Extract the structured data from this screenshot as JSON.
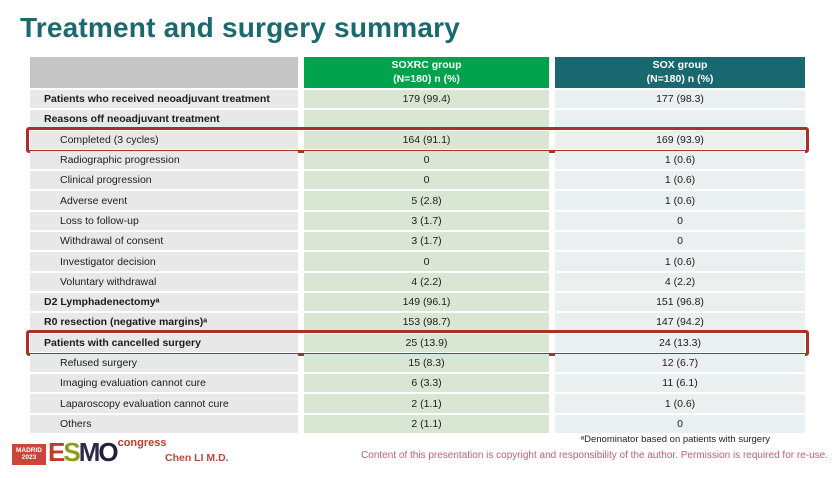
{
  "slide": {
    "title": "Treatment and surgery summary"
  },
  "table": {
    "columns": [
      {
        "line1": "SOXRC group",
        "line2": "(N=180)  n (%)"
      },
      {
        "line1": "SOX group",
        "line2": "(N=180)  n (%)"
      }
    ],
    "rows": [
      {
        "label": "Patients who received neoadjuvant treatment",
        "soxrc": "179 (99.4)",
        "sox": "177 (98.3)",
        "bold": true,
        "indent": false,
        "highlight": false
      },
      {
        "label": "Reasons off neoadjuvant treatment",
        "soxrc": "",
        "sox": "",
        "bold": true,
        "indent": false,
        "highlight": false
      },
      {
        "label": "Completed (3 cycles)",
        "soxrc": "164 (91.1)",
        "sox": "169 (93.9)",
        "bold": false,
        "indent": true,
        "highlight": true
      },
      {
        "label": "Radiographic progression",
        "soxrc": "0",
        "sox": "1 (0.6)",
        "bold": false,
        "indent": true,
        "highlight": false
      },
      {
        "label": "Clinical progression",
        "soxrc": "0",
        "sox": "1 (0.6)",
        "bold": false,
        "indent": true,
        "highlight": false
      },
      {
        "label": "Adverse event",
        "soxrc": "5 (2.8)",
        "sox": "1 (0.6)",
        "bold": false,
        "indent": true,
        "highlight": false
      },
      {
        "label": "Loss to follow-up",
        "soxrc": "3 (1.7)",
        "sox": "0",
        "bold": false,
        "indent": true,
        "highlight": false
      },
      {
        "label": "Withdrawal of consent",
        "soxrc": "3 (1.7)",
        "sox": "0",
        "bold": false,
        "indent": true,
        "highlight": false
      },
      {
        "label": "Investigator decision",
        "soxrc": "0",
        "sox": "1 (0.6)",
        "bold": false,
        "indent": true,
        "highlight": false
      },
      {
        "label": "Voluntary withdrawal",
        "soxrc": "4 (2.2)",
        "sox": "4 (2.2)",
        "bold": false,
        "indent": true,
        "highlight": false
      },
      {
        "label": "D2 Lymphadenectomyᵃ",
        "soxrc": "149 (96.1)",
        "sox": "151 (96.8)",
        "bold": true,
        "indent": false,
        "highlight": false
      },
      {
        "label": "R0 resection (negative margins)ᵃ",
        "soxrc": "153 (98.7)",
        "sox": "147 (94.2)",
        "bold": true,
        "indent": false,
        "highlight": false
      },
      {
        "label": "Patients with cancelled surgery",
        "soxrc": "25 (13.9)",
        "sox": "24 (13.3)",
        "bold": true,
        "indent": false,
        "highlight": true
      },
      {
        "label": "Refused surgery",
        "soxrc": "15 (8.3)",
        "sox": "12 (6.7)",
        "bold": false,
        "indent": true,
        "highlight": false
      },
      {
        "label": "Imaging evaluation cannot cure",
        "soxrc": "6 (3.3)",
        "sox": "11 (6.1)",
        "bold": false,
        "indent": true,
        "highlight": false
      },
      {
        "label": "Laparoscopy evaluation cannot cure",
        "soxrc": "2 (1.1)",
        "sox": "1 (0.6)",
        "bold": false,
        "indent": true,
        "highlight": false
      },
      {
        "label": "Others",
        "soxrc": "2 (1.1)",
        "sox": "0",
        "bold": false,
        "indent": true,
        "highlight": false
      }
    ]
  },
  "footer": {
    "logo": {
      "city": "MADRID",
      "year": "2023",
      "congress": "congress",
      "letters": [
        {
          "ch": "E",
          "color": "#c13b2b"
        },
        {
          "ch": "S",
          "color": "#8e9c1c"
        },
        {
          "ch": "M",
          "color": "#2c2a45"
        },
        {
          "ch": "O",
          "color": "#23203f"
        }
      ]
    },
    "presenter": "Chen LI M.D.",
    "footnote": "ᵃDenominator based on patients with surgery",
    "copyright": "Content of this presentation is copyright and responsibility of the author. Permission is required for re-use."
  },
  "colors": {
    "title_teal": "#19696f",
    "header_green": "#00a34c",
    "header_teal": "#19676f",
    "label_cell_gray": "#e9e8e8",
    "soxrc_cell_green": "#d9e6d3",
    "sox_cell_blue": "#eaf0f0",
    "highlight_red": "#a93226",
    "copyright_rose": "#c2606e",
    "logo_red": "#c9473a"
  }
}
